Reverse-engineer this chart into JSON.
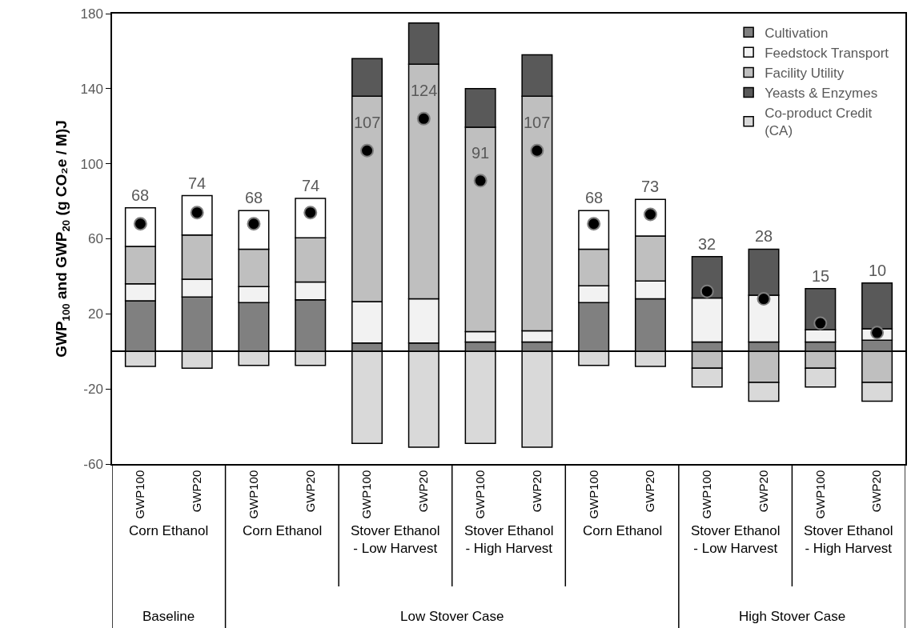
{
  "chart_data": {
    "type": "bar",
    "stacked": true,
    "ylabel": "GWP$_{100}$ and GWP$_{20}$ (g CO₂e / M)J",
    "categories": [
      "GWP100",
      "GWP20",
      "GWP100",
      "GWP20",
      "GWP100",
      "GWP20",
      "GWP100",
      "GWP20",
      "GWP100",
      "GWP20",
      "GWP100",
      "GWP20",
      "GWP100",
      "GWP20"
    ],
    "series": [
      {
        "name": "Cultivation",
        "color": "#808080",
        "values": [
          27,
          29,
          26,
          27.5,
          4.5,
          4.5,
          5,
          5,
          26,
          28,
          5,
          5,
          5,
          6
        ]
      },
      {
        "name": "Feedstock Transport",
        "color": "#f2f2f2",
        "values": [
          9,
          9.5,
          8.5,
          9.5,
          22,
          23.5,
          5.5,
          6,
          9,
          9.5,
          23.5,
          25,
          6.5,
          6
        ]
      },
      {
        "name": "Facility Utility",
        "color": "#bfbfbf",
        "values": [
          20,
          23.5,
          20,
          23.5,
          109.5,
          125,
          109,
          125,
          19.5,
          24,
          -9,
          -16.5,
          -9,
          -16.5
        ]
      },
      {
        "color": "#ffffff",
        "values": [
          20.5,
          21,
          20.5,
          21,
          null,
          null,
          null,
          null,
          20.5,
          19.5,
          null,
          null,
          null,
          null
        ]
      },
      {
        "name": "Yeasts & Enzymes",
        "color": "#595959",
        "values": [
          null,
          null,
          null,
          null,
          20,
          22,
          20.5,
          22,
          null,
          null,
          22,
          24.5,
          22,
          24.5
        ]
      },
      {
        "name": "Co-product Credit\n(CA)",
        "color": "#d9d9d9",
        "values": [
          -8,
          -9,
          -7.5,
          -7.5,
          -49,
          -51,
          -49,
          -51,
          -7.5,
          -8,
          -10,
          -10,
          -10,
          -10
        ]
      },
      {
        "type": "scatter",
        "color": "#000000",
        "marker": "circle",
        "values": [
          68,
          74,
          68,
          74,
          107,
          124,
          91,
          107,
          68,
          73,
          32,
          28,
          15,
          10
        ],
        "value_labels": [
          "68",
          "74",
          "68",
          "74",
          "107",
          "124",
          "91",
          "107",
          "68",
          "73",
          "32",
          "28",
          "15",
          "10"
        ]
      }
    ],
    "ylim": [
      -60,
      180
    ],
    "yticks": [
      -60,
      -20,
      20,
      60,
      100,
      140,
      180
    ],
    "legend": "top right",
    "annotations": [
      "Corn Ethanol",
      "Corn Ethanol",
      "Stover Ethanol\n- Low Harvest",
      "Stover Ethanol\n- High Harvest",
      "Corn Ethanol",
      "Stover Ethanol\n- Low Harvest",
      "Stover Ethanol\n- High Harvest",
      "Baseline",
      "Low Stover Case",
      "High Stover Case"
    ]
  }
}
